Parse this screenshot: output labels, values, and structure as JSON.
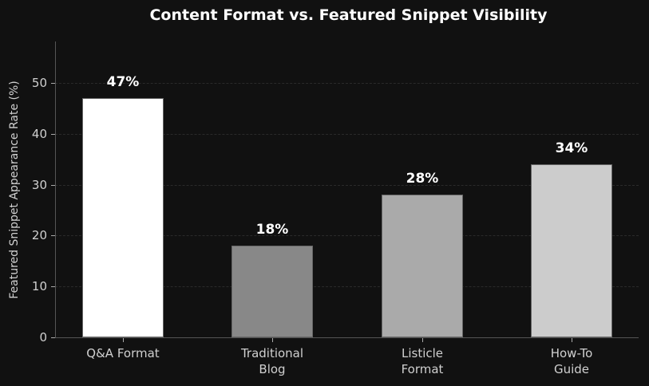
{
  "chart_data": {
    "type": "bar",
    "title": "Content Format vs. Featured Snippet Visibility",
    "xlabel": "",
    "ylabel": "Featured Snippet Appearance Rate (%)",
    "categories": [
      "Q&A Format",
      "Traditional\nBlog",
      "Listicle\nFormat",
      "How-To\nGuide"
    ],
    "values": [
      47,
      18,
      28,
      34
    ],
    "data_labels": [
      "47%",
      "18%",
      "28%",
      "34%"
    ],
    "colors": [
      "#ffffff",
      "#888888",
      "#aaaaaa",
      "#cccccc"
    ],
    "ylim": [
      0,
      58
    ],
    "yticks": [
      0,
      10,
      20,
      30,
      40,
      50
    ],
    "grid": true,
    "legend": null,
    "background": "#111111"
  }
}
